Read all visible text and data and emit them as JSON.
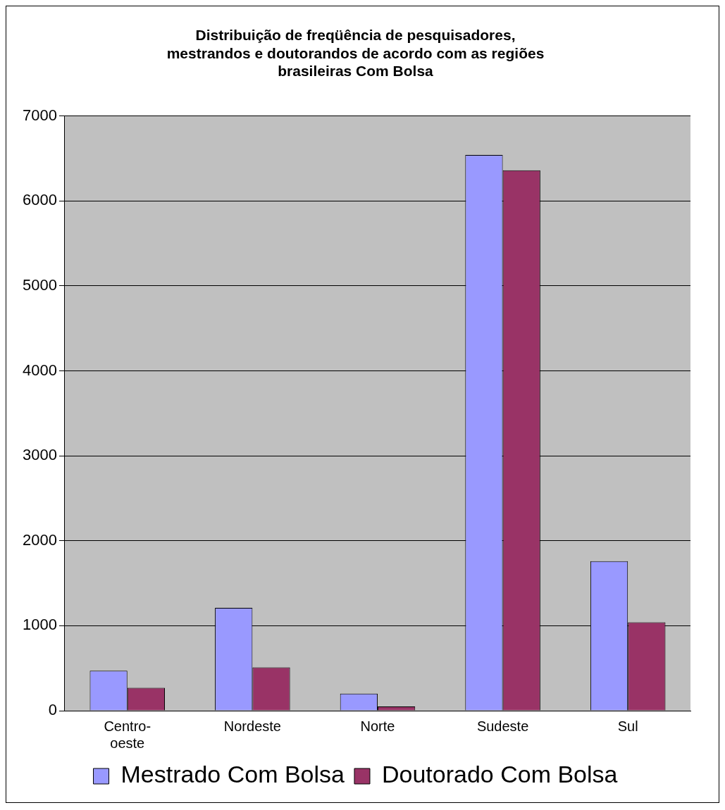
{
  "chart_data": {
    "type": "bar",
    "title": "Distribuição de freqüência de pesquisadores, mestrandos e doutorandos de acordo com as regiões brasileiras Com Bolsa",
    "categories": [
      "Centro-oeste",
      "Nordeste",
      "Norte",
      "Sudeste",
      "Sul"
    ],
    "series": [
      {
        "name": "Mestrado Com Bolsa",
        "color": "#9999ff",
        "values": [
          470,
          1210,
          200,
          6540,
          1760
        ]
      },
      {
        "name": "Doutorado Com Bolsa",
        "color": "#993366",
        "values": [
          270,
          510,
          50,
          6360,
          1040
        ]
      }
    ],
    "ylim": [
      0,
      7000
    ],
    "yticks": [
      0,
      1000,
      2000,
      3000,
      4000,
      5000,
      6000,
      7000
    ],
    "grid": "y",
    "legend": "bottom"
  }
}
